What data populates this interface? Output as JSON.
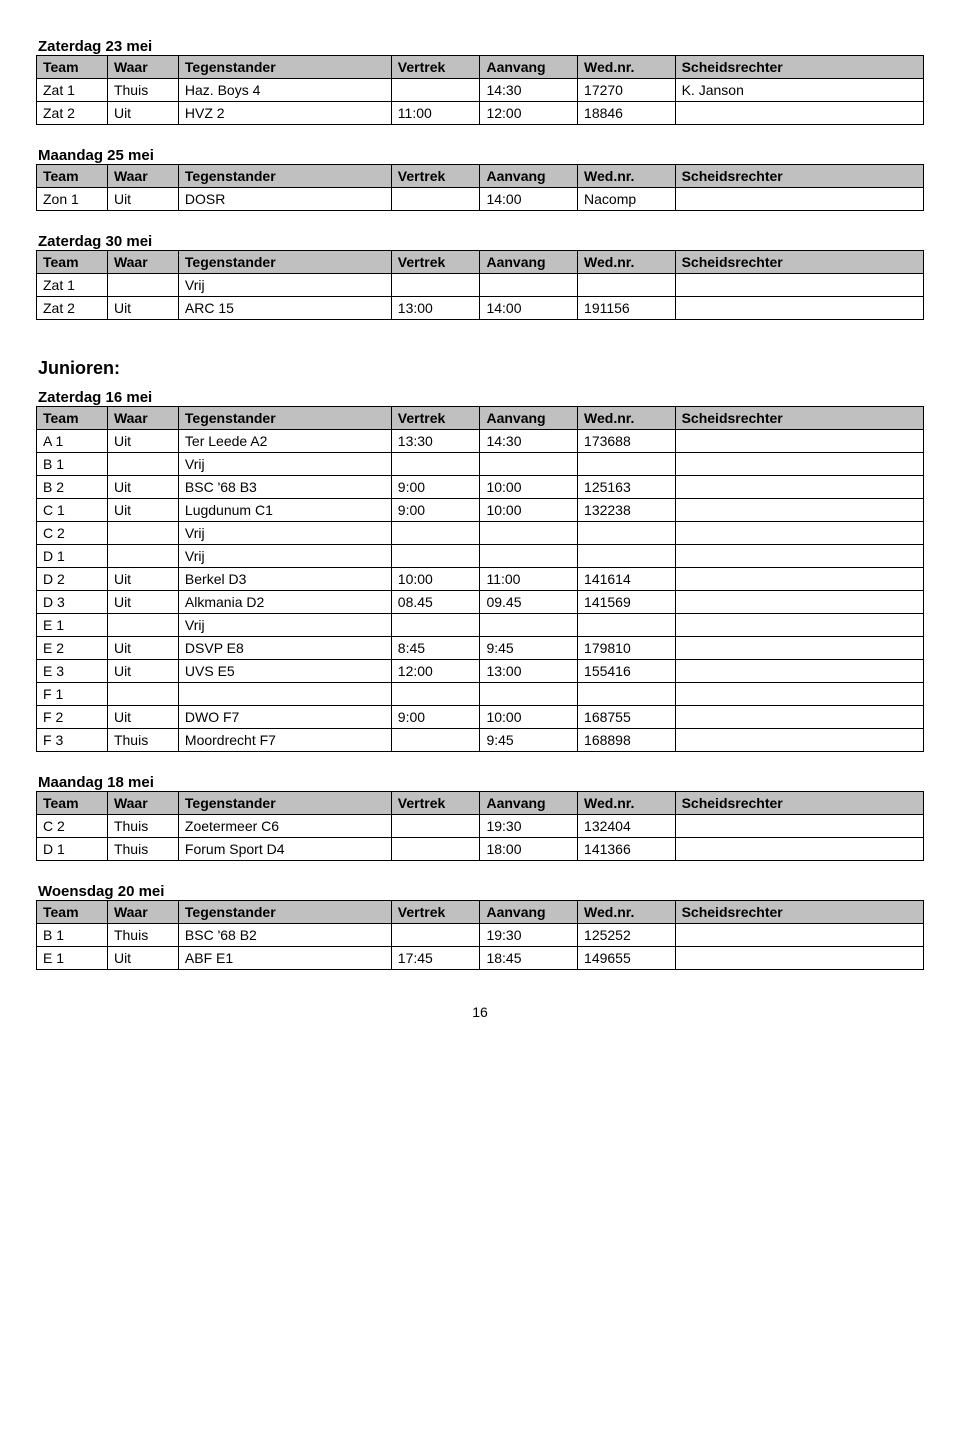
{
  "headers": {
    "team": "Team",
    "waar": "Waar",
    "tegenstander": "Tegenstander",
    "vertrek": "Vertrek",
    "aanvang": "Aanvang",
    "wednr": "Wed.nr.",
    "scheids": "Scheidsrechter"
  },
  "group_title": "Junioren:",
  "page_number": "16",
  "sections": [
    {
      "title": "Zaterdag 23 mei",
      "rows": [
        {
          "team": "Zat 1",
          "waar": "Thuis",
          "tegen": "Haz. Boys 4",
          "vertrek": "",
          "aanvang": "14:30",
          "wed": "17270",
          "sch": "K. Janson"
        },
        {
          "team": "Zat 2",
          "waar": "Uit",
          "tegen": "HVZ 2",
          "vertrek": "11:00",
          "aanvang": "12:00",
          "wed": "18846",
          "sch": ""
        }
      ]
    },
    {
      "title": "Maandag 25 mei",
      "rows": [
        {
          "team": "Zon 1",
          "waar": "Uit",
          "tegen": "DOSR",
          "vertrek": "",
          "aanvang": "14:00",
          "wed": "Nacomp",
          "sch": ""
        }
      ]
    },
    {
      "title": "Zaterdag 30 mei",
      "rows": [
        {
          "team": "Zat 1",
          "waar": "",
          "tegen": "Vrij",
          "vertrek": "",
          "aanvang": "",
          "wed": "",
          "sch": ""
        },
        {
          "team": "Zat 2",
          "waar": "Uit",
          "tegen": "ARC 15",
          "vertrek": "13:00",
          "aanvang": "14:00",
          "wed": "191156",
          "sch": ""
        }
      ]
    },
    {
      "title": "Zaterdag 16 mei",
      "rows": [
        {
          "team": "A 1",
          "waar": "Uit",
          "tegen": "Ter Leede A2",
          "vertrek": "13:30",
          "aanvang": "14:30",
          "wed": "173688",
          "sch": ""
        },
        {
          "team": "B 1",
          "waar": "",
          "tegen": "Vrij",
          "vertrek": "",
          "aanvang": "",
          "wed": "",
          "sch": ""
        },
        {
          "team": "B 2",
          "waar": "Uit",
          "tegen": "BSC '68 B3",
          "vertrek": "9:00",
          "aanvang": "10:00",
          "wed": "125163",
          "sch": ""
        },
        {
          "team": "C 1",
          "waar": "Uit",
          "tegen": "Lugdunum C1",
          "vertrek": "9:00",
          "aanvang": "10:00",
          "wed": "132238",
          "sch": ""
        },
        {
          "team": "C 2",
          "waar": "",
          "tegen": "Vrij",
          "vertrek": "",
          "aanvang": "",
          "wed": "",
          "sch": ""
        },
        {
          "team": "D 1",
          "waar": "",
          "tegen": "Vrij",
          "vertrek": "",
          "aanvang": "",
          "wed": "",
          "sch": ""
        },
        {
          "team": "D 2",
          "waar": "Uit",
          "tegen": "Berkel D3",
          "vertrek": "10:00",
          "aanvang": "11:00",
          "wed": "141614",
          "sch": ""
        },
        {
          "team": "D 3",
          "waar": "Uit",
          "tegen": "Alkmania D2",
          "vertrek": "08.45",
          "aanvang": "09.45",
          "wed": "141569",
          "sch": ""
        },
        {
          "team": "E 1",
          "waar": "",
          "tegen": "Vrij",
          "vertrek": "",
          "aanvang": "",
          "wed": "",
          "sch": ""
        },
        {
          "team": "E 2",
          "waar": "Uit",
          "tegen": "DSVP E8",
          "vertrek": "8:45",
          "aanvang": "9:45",
          "wed": "179810",
          "sch": ""
        },
        {
          "team": "E 3",
          "waar": "Uit",
          "tegen": "UVS E5",
          "vertrek": "12:00",
          "aanvang": "13:00",
          "wed": "155416",
          "sch": ""
        },
        {
          "team": "F 1",
          "waar": "",
          "tegen": "",
          "vertrek": "",
          "aanvang": "",
          "wed": "",
          "sch": ""
        },
        {
          "team": "F 2",
          "waar": "Uit",
          "tegen": "DWO F7",
          "vertrek": "9:00",
          "aanvang": "10:00",
          "wed": "168755",
          "sch": ""
        },
        {
          "team": "F 3",
          "waar": "Thuis",
          "tegen": "Moordrecht F7",
          "vertrek": "",
          "aanvang": "9:45",
          "wed": "168898",
          "sch": ""
        }
      ]
    },
    {
      "title": "Maandag 18 mei",
      "rows": [
        {
          "team": "C 2",
          "waar": "Thuis",
          "tegen": "Zoetermeer C6",
          "vertrek": "",
          "aanvang": "19:30",
          "wed": "132404",
          "sch": ""
        },
        {
          "team": "D 1",
          "waar": "Thuis",
          "tegen": "Forum Sport D4",
          "vertrek": "",
          "aanvang": "18:00",
          "wed": "141366",
          "sch": ""
        }
      ]
    },
    {
      "title": "Woensdag 20 mei",
      "rows": [
        {
          "team": "B 1",
          "waar": "Thuis",
          "tegen": "BSC '68  B2",
          "vertrek": "",
          "aanvang": "19:30",
          "wed": "125252",
          "sch": ""
        },
        {
          "team": "E 1",
          "waar": "Uit",
          "tegen": "ABF E1",
          "vertrek": "17:45",
          "aanvang": "18:45",
          "wed": "149655",
          "sch": ""
        }
      ]
    }
  ]
}
